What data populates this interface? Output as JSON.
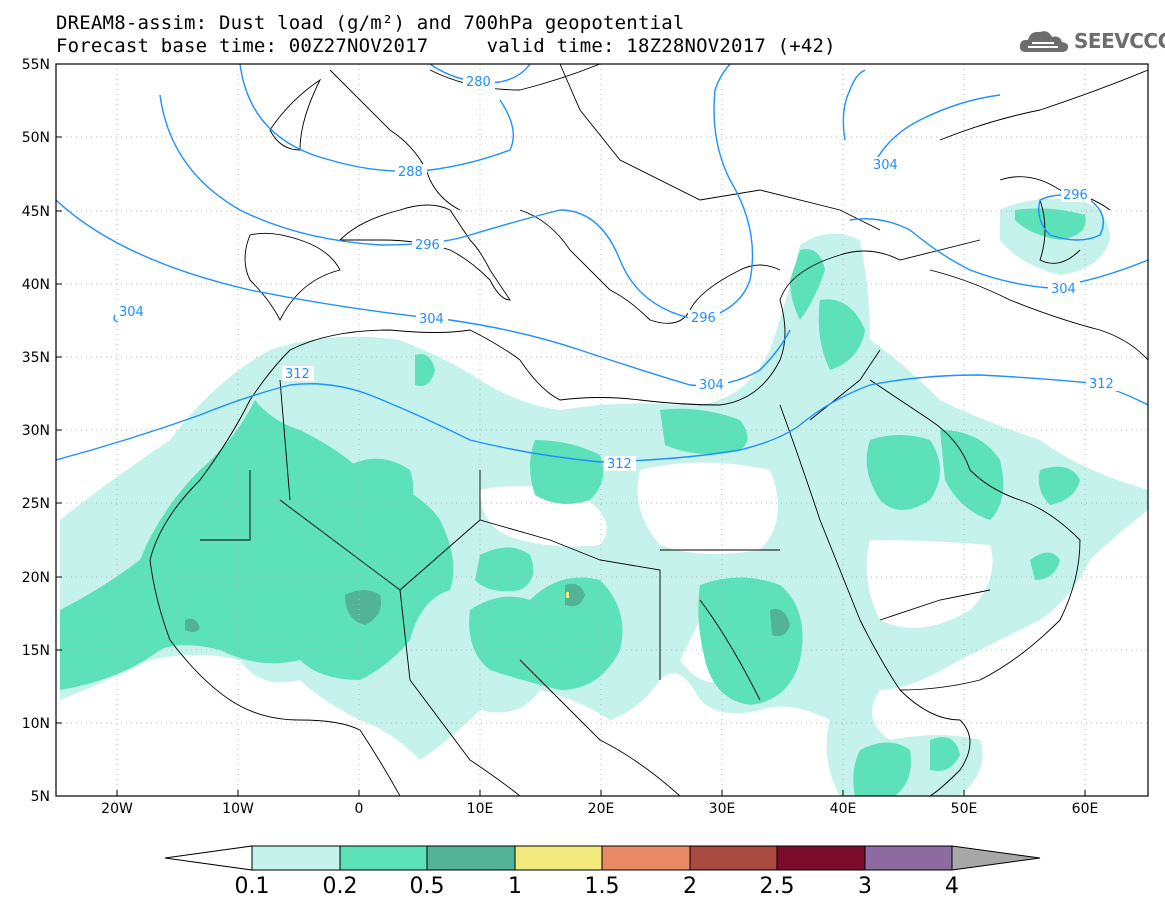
{
  "header": {
    "line1": "DREAM8-assim: Dust load (g/m²) and 700hPa geopotential",
    "line2": "Forecast base time: 00Z27NOV2017     valid time: 18Z28NOV2017 (+42)"
  },
  "logo": {
    "text": "SEEVCCC",
    "icon": "cloud-icon",
    "color": "#6d6d6d"
  },
  "map": {
    "lon_range": [
      -25,
      65
    ],
    "lat_range": [
      5,
      55
    ],
    "lon_ticks": [
      "20W",
      "10W",
      "0",
      "10E",
      "20E",
      "30E",
      "40E",
      "50E",
      "60E"
    ],
    "lat_ticks": [
      "55N",
      "50N",
      "45N",
      "40N",
      "35N",
      "30N",
      "25N",
      "20N",
      "15N",
      "10N",
      "5N"
    ],
    "grid": true,
    "contour_color": "#1e90ff",
    "contour_labels": [
      "280",
      "288",
      "296",
      "304",
      "312",
      "304",
      "304",
      "296",
      "304",
      "304",
      "312",
      "296"
    ]
  },
  "colorbar": {
    "labels": [
      "0.1",
      "0.2",
      "0.5",
      "1",
      "1.5",
      "2",
      "2.5",
      "3",
      "4"
    ],
    "colors": [
      "#ffffff",
      "#c5f2ea",
      "#5ce1b8",
      "#53b396",
      "#f3ea7e",
      "#e98963",
      "#a84a3f",
      "#7c0c2c",
      "#8d6ba0",
      "#a8a8a8"
    ]
  },
  "dust": {
    "light": "#c5f2ea",
    "mid": "#5ce1b8",
    "dark": "#53b396"
  }
}
